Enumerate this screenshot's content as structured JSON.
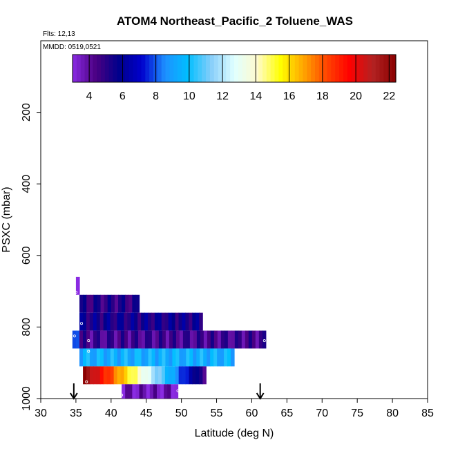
{
  "chart_data": {
    "type": "heatmap",
    "title": "ATOM4 Northeast_Pacific_2 Toluene_WAS",
    "flights_label": "Flts: 12,13",
    "date_label": "MMDD: 0519,0521",
    "xlabel": "Latitude (deg N)",
    "ylabel": "PSXC (mbar)",
    "xlim": [
      30,
      85
    ],
    "ylim": [
      1000,
      0
    ],
    "x_ticks": [
      30,
      35,
      40,
      45,
      50,
      55,
      60,
      65,
      70,
      75,
      80,
      85
    ],
    "y_ticks": [
      200,
      400,
      600,
      800,
      1000
    ],
    "colorbar": {
      "range": [
        3,
        22.4
      ],
      "ticks": [
        4,
        6,
        8,
        10,
        12,
        14,
        16,
        18,
        20,
        22
      ],
      "colors": [
        "#8a2be2",
        "#4b0082",
        "#00008b",
        "#0000cd",
        "#1e90ff",
        "#00bfff",
        "#87cefa",
        "#e0ffff",
        "#fffacd",
        "#ffff00",
        "#ffa500",
        "#ff4500",
        "#ff0000",
        "#b22222",
        "#8b0000"
      ]
    },
    "arrows_lat": [
      34.7,
      61.2
    ],
    "cells": [
      {
        "lat": [
          35,
          35.5
        ],
        "p": [
          660,
          710
        ],
        "v": 3.5
      },
      {
        "lat": [
          35.5,
          44
        ],
        "p": [
          710,
          760
        ],
        "v": 5.0
      },
      {
        "lat": [
          35.5,
          53
        ],
        "p": [
          760,
          810
        ],
        "v": 5.5
      },
      {
        "lat": [
          34.5,
          35.5
        ],
        "p": [
          810,
          860
        ],
        "v": 8.5
      },
      {
        "lat": [
          35.5,
          62
        ],
        "p": [
          810,
          860
        ],
        "v": 4.5
      },
      {
        "lat": [
          35.5,
          57.5
        ],
        "p": [
          860,
          910
        ],
        "v": 9.5
      },
      {
        "lat": [
          36,
          53.5
        ],
        "p": [
          910,
          960
        ],
        "v": 12.0
      },
      {
        "lat": [
          41.5,
          49.5
        ],
        "p": [
          960,
          1000
        ],
        "v": 3.6
      }
    ],
    "samples": [
      {
        "lat": 35.0,
        "p": 703
      },
      {
        "lat": 35.8,
        "p": 790
      },
      {
        "lat": 34.8,
        "p": 825
      },
      {
        "lat": 36.8,
        "p": 838
      },
      {
        "lat": 61.8,
        "p": 838
      },
      {
        "lat": 36.8,
        "p": 868
      },
      {
        "lat": 36.5,
        "p": 953
      },
      {
        "lat": 41.5,
        "p": 990
      },
      {
        "lat": 49.5,
        "p": 978
      }
    ]
  }
}
